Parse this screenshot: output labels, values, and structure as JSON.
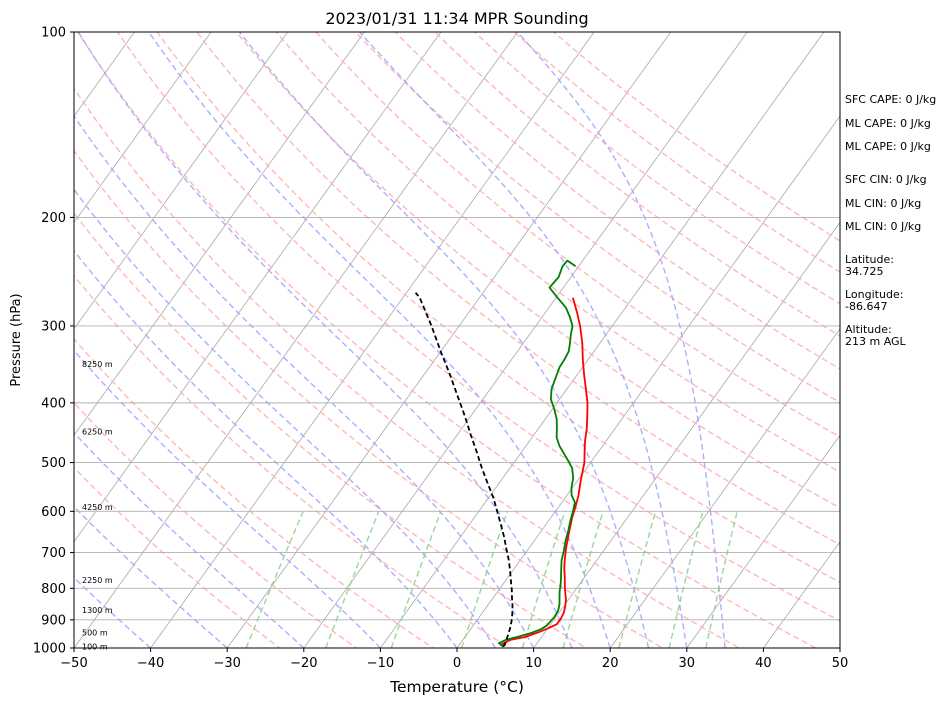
{
  "chart_data": {
    "type": "line",
    "subtype": "skew-t log-p sounding",
    "title": "2023/01/31 11:34 MPR Sounding",
    "xlabel": "Temperature (°C)",
    "ylabel": "Pressure (hPa)",
    "xlim": [
      -50,
      50
    ],
    "ylim": [
      1000,
      100
    ],
    "y_scale": "log",
    "grid": true,
    "x_ticks": [
      "−50",
      "−40",
      "−30",
      "−20",
      "−10",
      "0",
      "10",
      "20",
      "30",
      "40",
      "50"
    ],
    "y_ticks": [
      {
        "p": 100,
        "label": "100"
      },
      {
        "p": 200,
        "label": "200"
      },
      {
        "p": 300,
        "label": "300"
      },
      {
        "p": 400,
        "label": "400"
      },
      {
        "p": 500,
        "label": "500"
      },
      {
        "p": 600,
        "label": "600"
      },
      {
        "p": 700,
        "label": "700"
      },
      {
        "p": 800,
        "label": "800"
      },
      {
        "p": 900,
        "label": "900"
      },
      {
        "p": 1000,
        "label": "1000"
      }
    ],
    "height_labels": [
      {
        "p": 346,
        "label": "8250 m"
      },
      {
        "p": 445,
        "label": "6250 m"
      },
      {
        "p": 590,
        "label": "4250 m"
      },
      {
        "p": 775,
        "label": "2250 m"
      },
      {
        "p": 868,
        "label": "1300 m"
      },
      {
        "p": 944,
        "label": "500 m"
      },
      {
        "p": 995,
        "label": "100 m"
      }
    ],
    "series": [
      {
        "key": "temperature",
        "color": "#ff0000",
        "points": [
          [
            5.9,
            995
          ],
          [
            5.5,
            985
          ],
          [
            6.2,
            970
          ],
          [
            7.8,
            960
          ],
          [
            9.0,
            945
          ],
          [
            10.0,
            930
          ],
          [
            10.8,
            915
          ],
          [
            10.8,
            895
          ],
          [
            10.6,
            875
          ],
          [
            10.2,
            855
          ],
          [
            9.7,
            835
          ],
          [
            9.0,
            815
          ],
          [
            8.3,
            795
          ],
          [
            7.5,
            770
          ],
          [
            6.6,
            745
          ],
          [
            5.8,
            720
          ],
          [
            4.9,
            690
          ],
          [
            4.2,
            665
          ],
          [
            3.5,
            640
          ],
          [
            2.8,
            615
          ],
          [
            2.2,
            590
          ],
          [
            1.5,
            565
          ],
          [
            0.6,
            540
          ],
          [
            -0.1,
            520
          ],
          [
            -0.8,
            500
          ],
          [
            -1.8,
            480
          ],
          [
            -2.8,
            460
          ],
          [
            -3.7,
            440
          ],
          [
            -4.8,
            420
          ],
          [
            -6.0,
            400
          ],
          [
            -7.5,
            380
          ],
          [
            -9.1,
            360
          ],
          [
            -10.7,
            340
          ],
          [
            -12.3,
            320
          ],
          [
            -14.2,
            300
          ],
          [
            -15.9,
            285
          ],
          [
            -17.8,
            270
          ]
        ]
      },
      {
        "key": "dewpoint",
        "color": "#008000",
        "points": [
          [
            5.9,
            995
          ],
          [
            5.0,
            982
          ],
          [
            5.6,
            970
          ],
          [
            7.0,
            958
          ],
          [
            8.3,
            945
          ],
          [
            9.2,
            932
          ],
          [
            9.6,
            920
          ],
          [
            9.7,
            905
          ],
          [
            9.8,
            890
          ],
          [
            9.7,
            870
          ],
          [
            9.3,
            850
          ],
          [
            8.7,
            830
          ],
          [
            8.1,
            810
          ],
          [
            7.6,
            790
          ],
          [
            7.0,
            770
          ],
          [
            6.2,
            745
          ],
          [
            5.4,
            720
          ],
          [
            4.8,
            695
          ],
          [
            4.1,
            670
          ],
          [
            3.5,
            645
          ],
          [
            2.8,
            620
          ],
          [
            2.3,
            600
          ],
          [
            1.7,
            580
          ],
          [
            0.6,
            565
          ],
          [
            -0.1,
            550
          ],
          [
            -0.8,
            530
          ],
          [
            -1.9,
            510
          ],
          [
            -3.7,
            490
          ],
          [
            -5.6,
            470
          ],
          [
            -6.8,
            455
          ],
          [
            -7.6,
            440
          ],
          [
            -8.5,
            425
          ],
          [
            -9.7,
            410
          ],
          [
            -11.1,
            395
          ],
          [
            -12.0,
            380
          ],
          [
            -12.5,
            365
          ],
          [
            -13.0,
            350
          ],
          [
            -13.1,
            340
          ],
          [
            -13.3,
            330
          ],
          [
            -13.9,
            320
          ],
          [
            -14.6,
            310
          ],
          [
            -15.2,
            300
          ],
          [
            -16.4,
            290
          ],
          [
            -17.8,
            280
          ],
          [
            -19.8,
            270
          ],
          [
            -21.8,
            260
          ],
          [
            -21.6,
            250
          ],
          [
            -22.1,
            240
          ],
          [
            -22.0,
            235
          ],
          [
            -20.4,
            240
          ]
        ]
      },
      {
        "key": "parcel",
        "color": "#000000",
        "dashed": true,
        "points": [
          [
            5.9,
            995
          ],
          [
            5.9,
            985
          ],
          [
            5.7,
            970
          ],
          [
            5.4,
            950
          ],
          [
            5.1,
            930
          ],
          [
            4.6,
            905
          ],
          [
            4.0,
            880
          ],
          [
            3.3,
            855
          ],
          [
            2.5,
            830
          ],
          [
            1.7,
            805
          ],
          [
            0.8,
            780
          ],
          [
            -0.3,
            750
          ],
          [
            -1.5,
            720
          ],
          [
            -2.9,
            690
          ],
          [
            -4.3,
            660
          ],
          [
            -5.9,
            630
          ],
          [
            -7.6,
            600
          ],
          [
            -9.4,
            570
          ],
          [
            -11.5,
            540
          ],
          [
            -13.7,
            510
          ],
          [
            -15.9,
            480
          ],
          [
            -18.3,
            450
          ],
          [
            -20.8,
            420
          ],
          [
            -23.6,
            390
          ],
          [
            -26.6,
            360
          ],
          [
            -30.0,
            330
          ],
          [
            -33.6,
            300
          ],
          [
            -37.8,
            270
          ],
          [
            -38.8,
            265
          ]
        ]
      }
    ],
    "dry_adiabats_k": [
      250,
      260,
      270,
      280,
      290,
      300,
      310,
      320,
      330,
      340,
      350,
      360,
      370,
      380,
      390,
      400,
      410,
      420,
      430,
      440
    ],
    "moist_adiabats_c": [
      -40,
      -30,
      -20,
      -10,
      0,
      5,
      10,
      15,
      20,
      25,
      30,
      35
    ],
    "mixing_ratios_gkg": [
      0.4,
      1,
      2,
      4,
      7,
      10,
      16,
      24,
      32
    ]
  },
  "sidebar": {
    "sfc_cape": "SFC CAPE: 0 J/kg",
    "ml_cape": "ML CAPE: 0 J/kg",
    "mu_cape": "ML CAPE: 0 J/kg",
    "sfc_cin": "SFC CIN: 0 J/kg",
    "ml_cin": "ML CIN: 0 J/kg",
    "mu_cin": "ML CIN: 0 J/kg",
    "latitude": "Latitude:\n34.725",
    "longitude": "Longitude:\n-86.647",
    "altitude": "Altitude:\n213 m AGL"
  },
  "colors": {
    "temperature": "#ff0000",
    "dewpoint": "#008000",
    "parcel": "#000000",
    "dry_adiabat": "#ffb0b0",
    "moist_adiabat": "#a0a0ff",
    "mixing_ratio": "#90d090",
    "isotherm": "#a8a8a8"
  }
}
